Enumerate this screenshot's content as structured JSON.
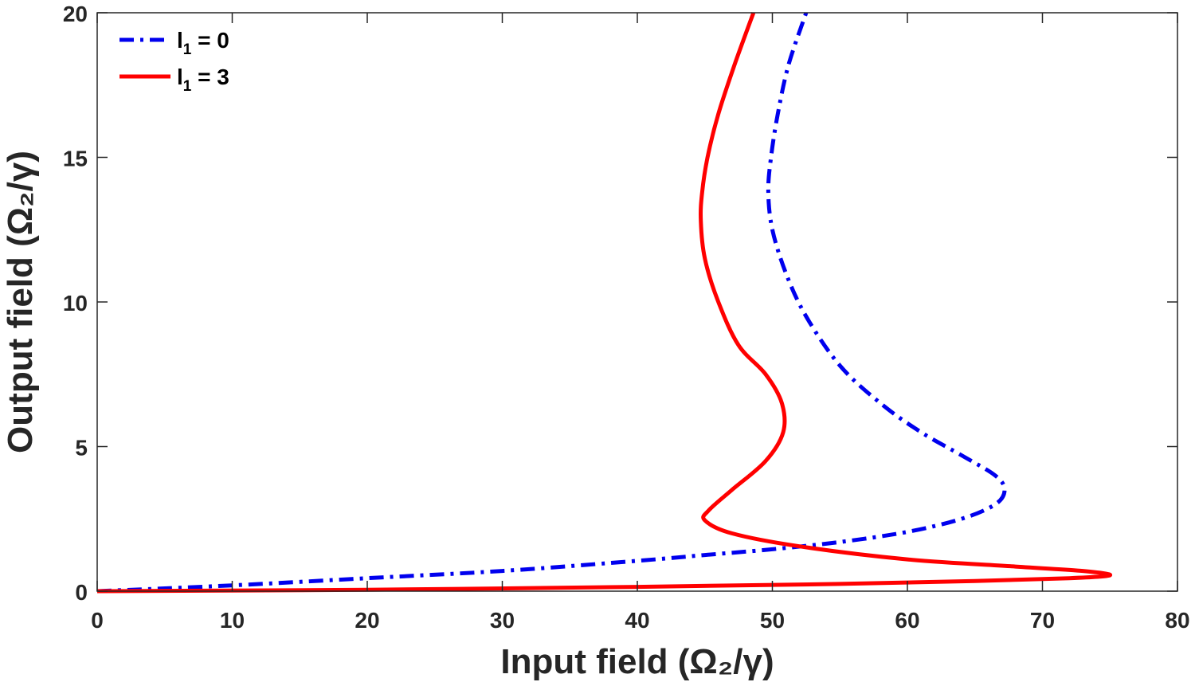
{
  "chart_data": {
    "type": "line",
    "title": "",
    "xlabel": "Input field (Ω₂/γ)",
    "ylabel": "Output field (Ω₂/γ)",
    "xlim": [
      0,
      80
    ],
    "ylim": [
      0,
      20
    ],
    "xticks": [
      0,
      10,
      20,
      30,
      40,
      50,
      60,
      70,
      80
    ],
    "yticks": [
      0,
      5,
      10,
      15,
      20
    ],
    "grid": false,
    "legend_position": "top-left",
    "series": [
      {
        "name": "l₁ = 0",
        "legend_main": "l",
        "legend_sub": "1",
        "legend_rest": " = 0",
        "color": "#0000ee",
        "style": "dash-dot",
        "points": [
          [
            0,
            0
          ],
          [
            10,
            0.2
          ],
          [
            20,
            0.45
          ],
          [
            30,
            0.7
          ],
          [
            40,
            1.05
          ],
          [
            45,
            1.25
          ],
          [
            50,
            1.45
          ],
          [
            55,
            1.7
          ],
          [
            60,
            2.05
          ],
          [
            64,
            2.5
          ],
          [
            66.5,
            3.0
          ],
          [
            67.2,
            3.5
          ],
          [
            66.5,
            4.0
          ],
          [
            64,
            4.7
          ],
          [
            61,
            5.5
          ],
          [
            58,
            6.5
          ],
          [
            55,
            7.8
          ],
          [
            52.5,
            9.5
          ],
          [
            51,
            11
          ],
          [
            50,
            12.5
          ],
          [
            49.7,
            13.8
          ],
          [
            49.9,
            15
          ],
          [
            50.4,
            16.5
          ],
          [
            51.2,
            18.2
          ],
          [
            52.5,
            20
          ]
        ]
      },
      {
        "name": "l₁ = 3",
        "legend_main": "l",
        "legend_sub": "1",
        "legend_rest": " = 3",
        "color": "#ff0000",
        "style": "solid",
        "points": [
          [
            0,
            0
          ],
          [
            20,
            0.05
          ],
          [
            40,
            0.15
          ],
          [
            55,
            0.25
          ],
          [
            65,
            0.35
          ],
          [
            72,
            0.45
          ],
          [
            75,
            0.55
          ],
          [
            73,
            0.7
          ],
          [
            68,
            0.85
          ],
          [
            60,
            1.1
          ],
          [
            52,
            1.55
          ],
          [
            47,
            2.0
          ],
          [
            45,
            2.45
          ],
          [
            45.3,
            2.8
          ],
          [
            47,
            3.5
          ],
          [
            49.5,
            4.5
          ],
          [
            50.8,
            5.5
          ],
          [
            50.7,
            6.5
          ],
          [
            49.5,
            7.5
          ],
          [
            47.5,
            8.5
          ],
          [
            46,
            10
          ],
          [
            45,
            11.5
          ],
          [
            44.7,
            12.8
          ],
          [
            44.8,
            13.8
          ],
          [
            45.2,
            15
          ],
          [
            46,
            16.5
          ],
          [
            47.2,
            18.2
          ],
          [
            48.6,
            20
          ]
        ]
      }
    ]
  }
}
